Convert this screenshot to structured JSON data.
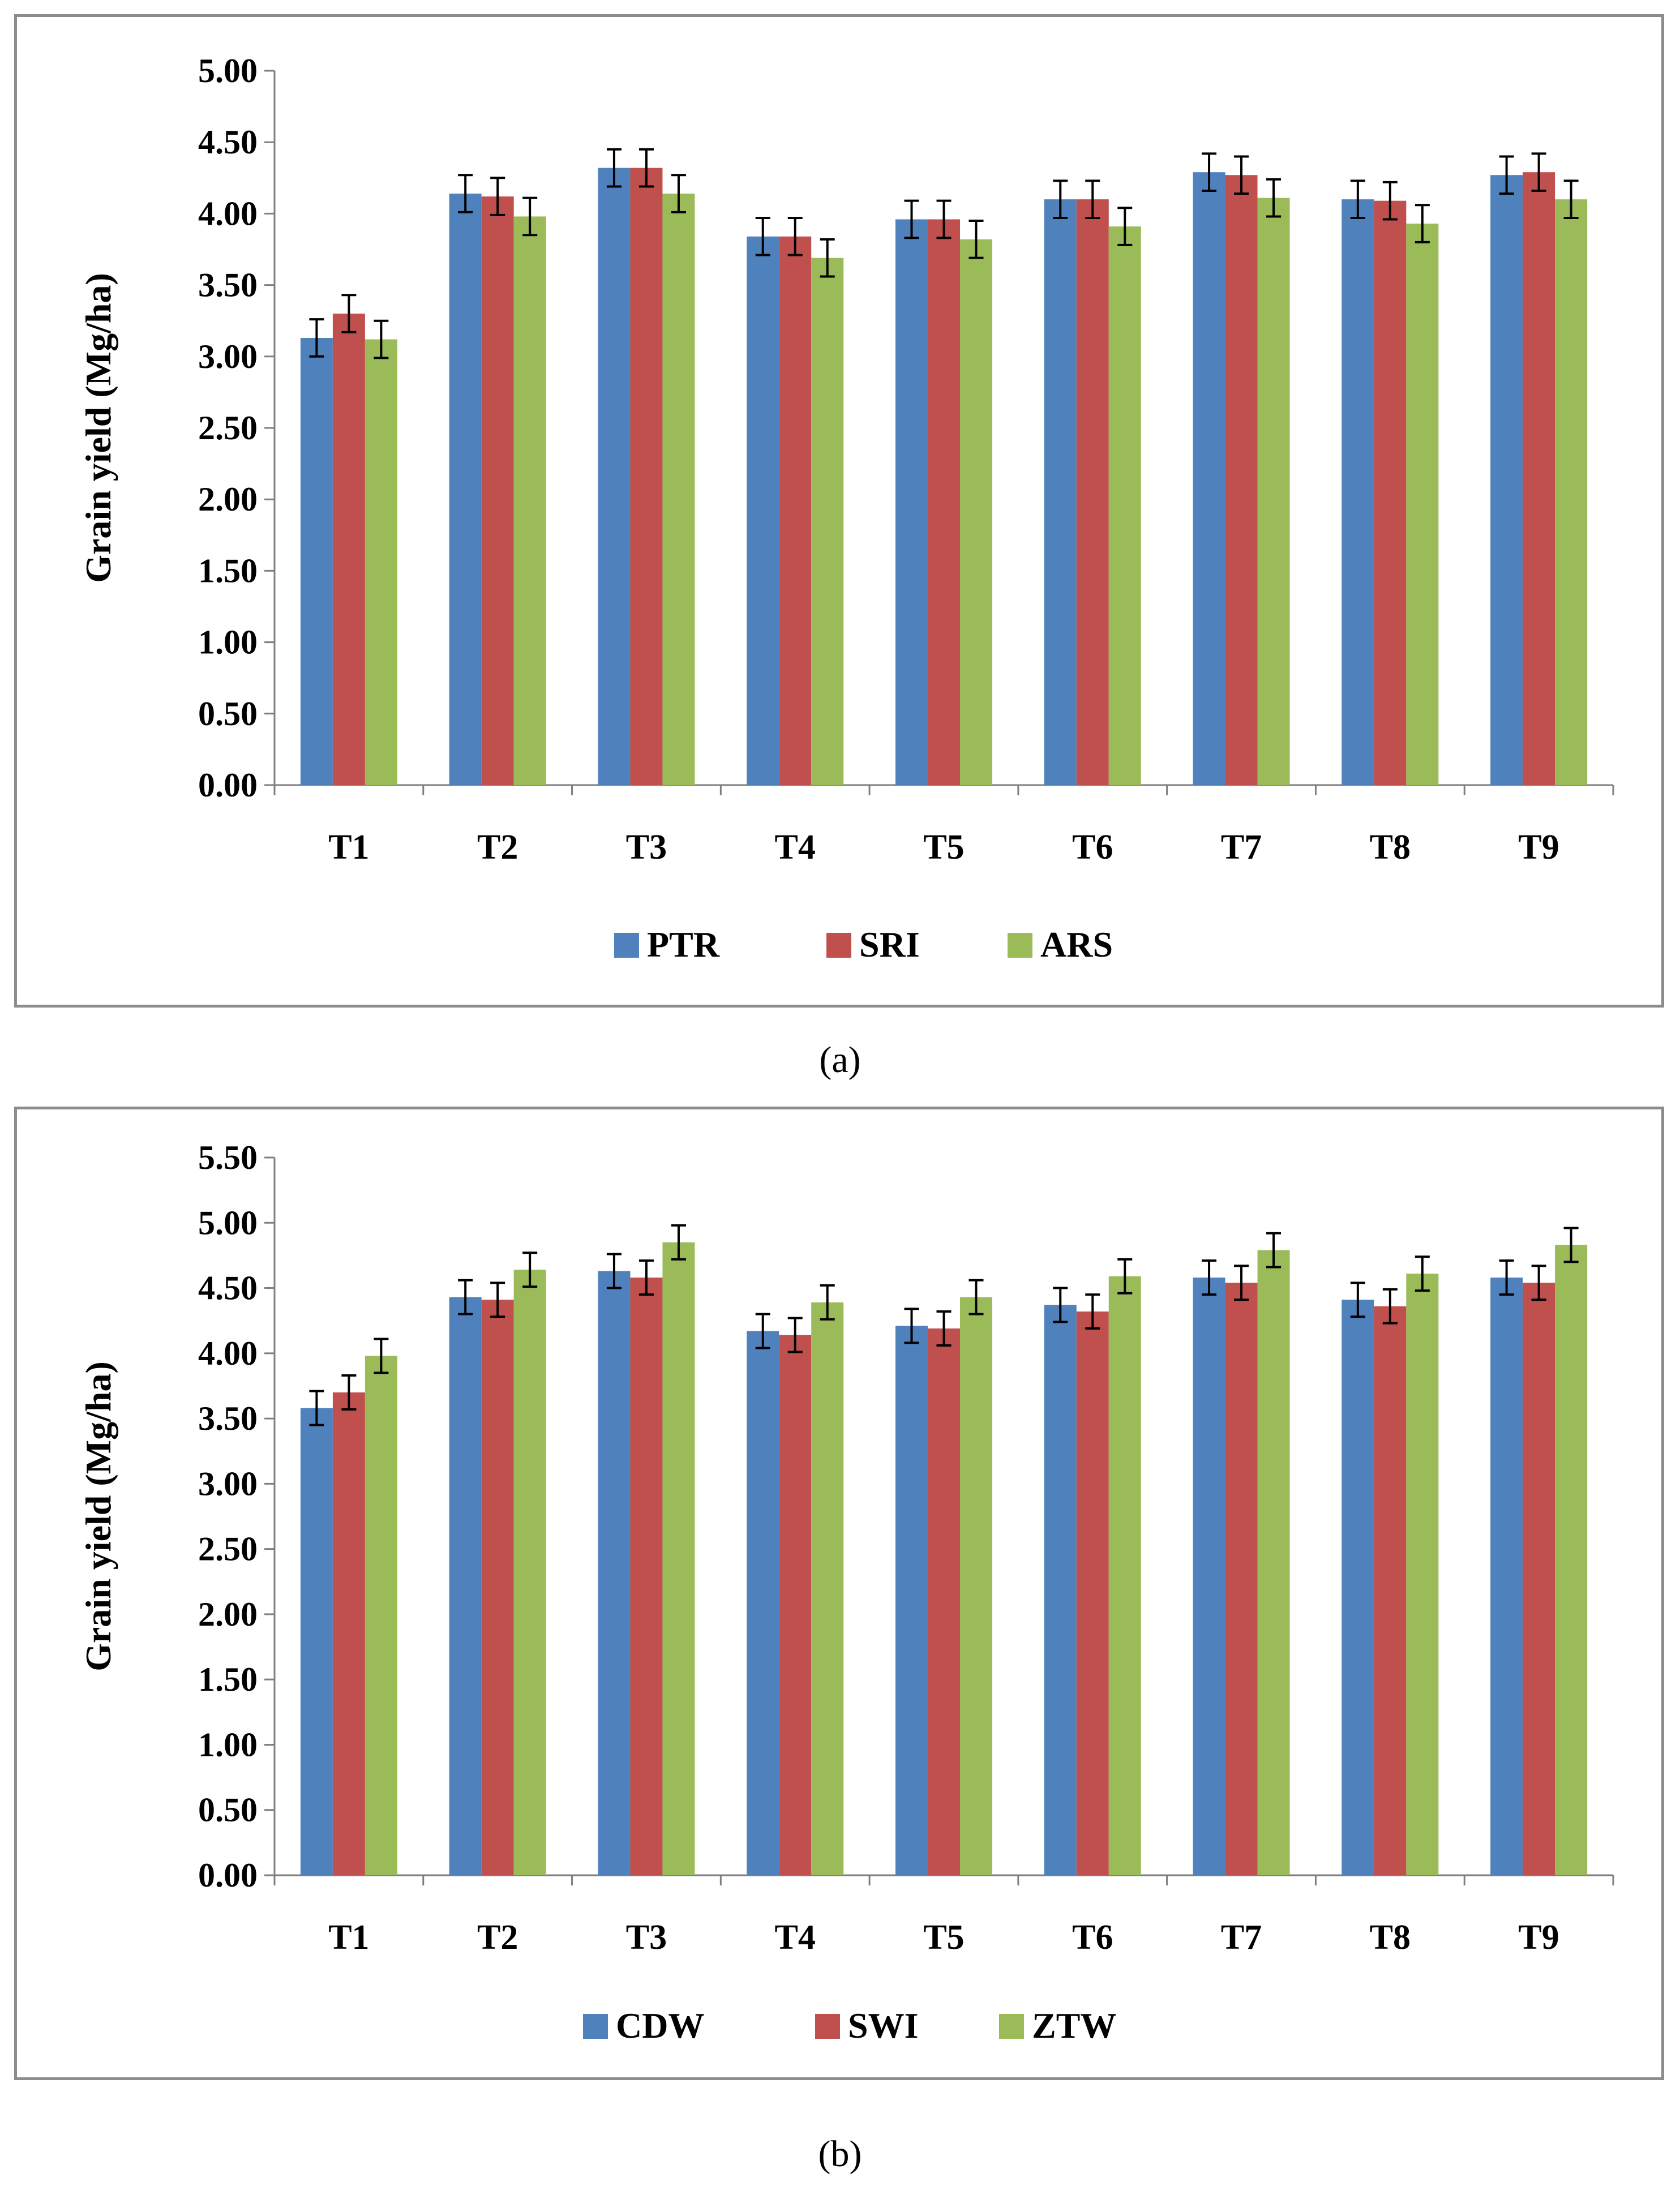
{
  "colors": [
    "#4f81bd",
    "#c0504d",
    "#9bbb59"
  ],
  "chart_data": [
    {
      "type": "bar",
      "panel_label": "(a)",
      "ylabel": "Grain yield (Mg/ha)",
      "xlabel": "",
      "ylim": [
        0,
        5
      ],
      "ytick_step": 0.5,
      "ytick_labels": [
        "0.00",
        "0.50",
        "1.00",
        "1.50",
        "2.00",
        "2.50",
        "3.00",
        "3.50",
        "4.00",
        "4.50",
        "5.00"
      ],
      "categories": [
        "T1",
        "T2",
        "T3",
        "T4",
        "T5",
        "T6",
        "T7",
        "T8",
        "T9"
      ],
      "legend_position": "bottom-center",
      "error": 0.13,
      "series": [
        {
          "name": "PTR",
          "values": [
            3.13,
            4.14,
            4.32,
            3.84,
            3.96,
            4.1,
            4.29,
            4.1,
            4.27
          ]
        },
        {
          "name": "SRI",
          "values": [
            3.3,
            4.12,
            4.32,
            3.84,
            3.96,
            4.1,
            4.27,
            4.09,
            4.29
          ]
        },
        {
          "name": "ARS",
          "values": [
            3.12,
            3.98,
            4.14,
            3.69,
            3.82,
            3.91,
            4.11,
            3.93,
            4.1
          ]
        }
      ]
    },
    {
      "type": "bar",
      "panel_label": "(b)",
      "ylabel": "Grain yield (Mg/ha)",
      "xlabel": "",
      "ylim": [
        0,
        5.5
      ],
      "ytick_step": 0.5,
      "ytick_labels": [
        "0.00",
        "0.50",
        "1.00",
        "1.50",
        "2.00",
        "2.50",
        "3.00",
        "3.50",
        "4.00",
        "4.50",
        "5.00",
        "5.50"
      ],
      "categories": [
        "T1",
        "T2",
        "T3",
        "T4",
        "T5",
        "T6",
        "T7",
        "T8",
        "T9"
      ],
      "legend_position": "bottom-center",
      "error": 0.13,
      "series": [
        {
          "name": "CDW",
          "values": [
            3.58,
            4.43,
            4.63,
            4.17,
            4.21,
            4.37,
            4.58,
            4.41,
            4.58
          ]
        },
        {
          "name": "SWI",
          "values": [
            3.7,
            4.41,
            4.58,
            4.14,
            4.19,
            4.32,
            4.54,
            4.36,
            4.54
          ]
        },
        {
          "name": "ZTW",
          "values": [
            3.98,
            4.64,
            4.85,
            4.39,
            4.43,
            4.59,
            4.79,
            4.61,
            4.83
          ]
        }
      ]
    }
  ]
}
